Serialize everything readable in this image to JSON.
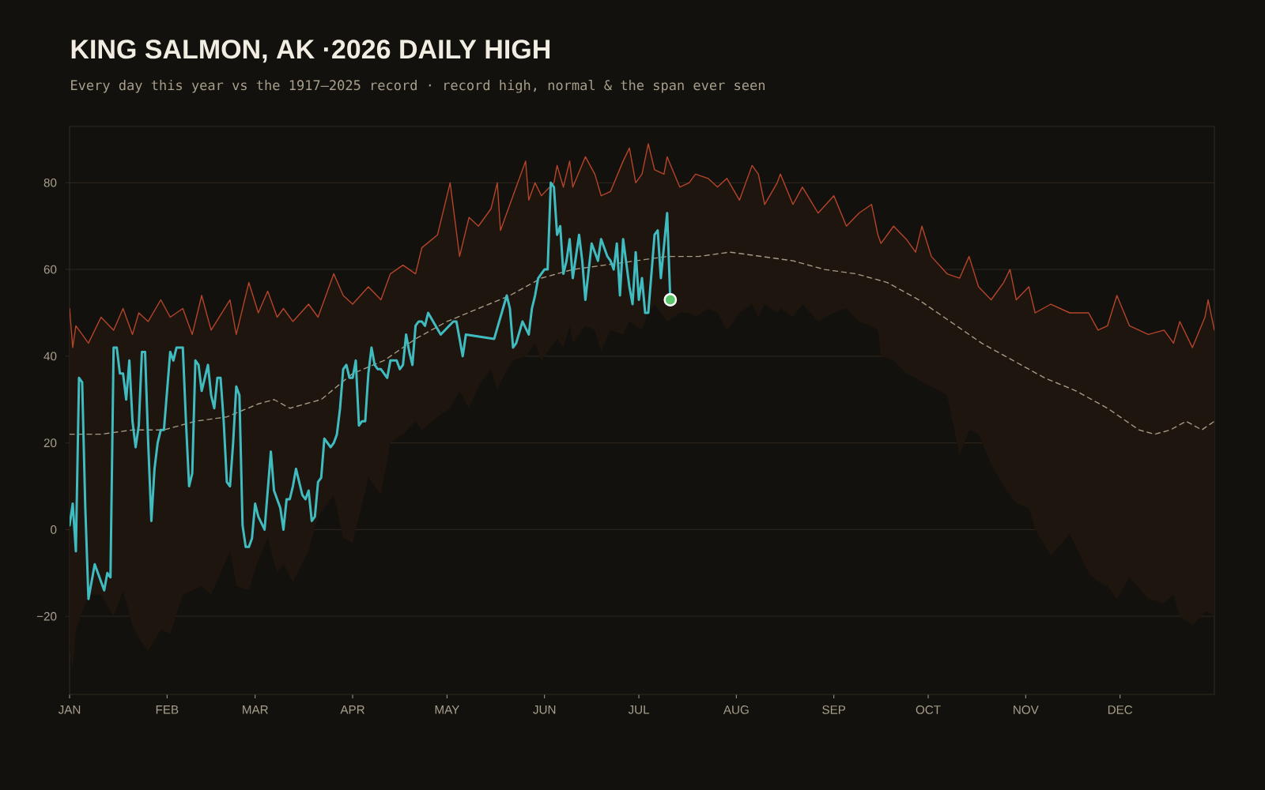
{
  "chart_data": {
    "type": "line",
    "title": "KING SALMON, AK ·2026 DAILY HIGH",
    "subtitle": "Every day this year vs the 1917–2025 record · record high, normal & the span ever seen",
    "xlim": [
      "2026-01-01",
      "2026-12-31"
    ],
    "xticks": [
      {
        "value": "2026-01-01",
        "label": "JAN"
      },
      {
        "value": "2026-02-01",
        "label": "FEB"
      },
      {
        "value": "2026-03-01",
        "label": "MAR"
      },
      {
        "value": "2026-04-01",
        "label": "APR"
      },
      {
        "value": "2026-05-01",
        "label": "MAY"
      },
      {
        "value": "2026-06-01",
        "label": "JUN"
      },
      {
        "value": "2026-07-01",
        "label": "JUL"
      },
      {
        "value": "2026-08-01",
        "label": "AUG"
      },
      {
        "value": "2026-09-01",
        "label": "SEP"
      },
      {
        "value": "2026-10-01",
        "label": "OCT"
      },
      {
        "value": "2026-11-01",
        "label": "NOV"
      },
      {
        "value": "2026-12-01",
        "label": "DEC"
      }
    ],
    "ylim": [
      -38,
      93
    ],
    "yticks": [
      {
        "value": -20,
        "label": "−20"
      },
      0,
      20,
      40,
      60,
      80
    ],
    "grid": "y",
    "series": [
      {
        "color": "#b5452a",
        "x": [
          "2026-01-01",
          "2026-01-02",
          "2026-01-03",
          "2026-01-07",
          "2026-01-11",
          "2026-01-15",
          "2026-01-18",
          "2026-01-21",
          "2026-01-23",
          "2026-01-26",
          "2026-01-30",
          "2026-02-02",
          "2026-02-06",
          "2026-02-09",
          "2026-02-12",
          "2026-02-15",
          "2026-02-21",
          "2026-02-23",
          "2026-02-27",
          "2026-03-02",
          "2026-03-05",
          "2026-03-08",
          "2026-03-10",
          "2026-03-13",
          "2026-03-18",
          "2026-03-21",
          "2026-03-26",
          "2026-03-29",
          "2026-04-01",
          "2026-04-06",
          "2026-04-10",
          "2026-04-13",
          "2026-04-17",
          "2026-04-21",
          "2026-04-23",
          "2026-04-28",
          "2026-05-02",
          "2026-05-05",
          "2026-05-08",
          "2026-05-11",
          "2026-05-15",
          "2026-05-17",
          "2026-05-18",
          "2026-05-22",
          "2026-05-26",
          "2026-05-27",
          "2026-05-29",
          "2026-05-31",
          "2026-06-04",
          "2026-06-05",
          "2026-06-07",
          "2026-06-09",
          "2026-06-10",
          "2026-06-14",
          "2026-06-17",
          "2026-06-19",
          "2026-06-22",
          "2026-06-26",
          "2026-06-28",
          "2026-06-30",
          "2026-07-02",
          "2026-07-04",
          "2026-07-06",
          "2026-07-09",
          "2026-07-10",
          "2026-07-14",
          "2026-07-17",
          "2026-07-19",
          "2026-07-23",
          "2026-07-26",
          "2026-07-29",
          "2026-08-02",
          "2026-08-06",
          "2026-08-08",
          "2026-08-10",
          "2026-08-14",
          "2026-08-15",
          "2026-08-19",
          "2026-08-22",
          "2026-08-27",
          "2026-09-01",
          "2026-09-05",
          "2026-09-09",
          "2026-09-13",
          "2026-09-15",
          "2026-09-16",
          "2026-09-20",
          "2026-09-24",
          "2026-09-27",
          "2026-09-29",
          "2026-10-02",
          "2026-10-07",
          "2026-10-11",
          "2026-10-14",
          "2026-10-17",
          "2026-10-21",
          "2026-10-25",
          "2026-10-27",
          "2026-10-29",
          "2026-11-02",
          "2026-11-04",
          "2026-11-09",
          "2026-11-15",
          "2026-11-21",
          "2026-11-24",
          "2026-11-27",
          "2026-11-30",
          "2026-12-04",
          "2026-12-10",
          "2026-12-15",
          "2026-12-18",
          "2026-12-20",
          "2026-12-24",
          "2026-12-28",
          "2026-12-29",
          "2026-12-31"
        ],
        "values": [
          51,
          42,
          47,
          43,
          49,
          46,
          51,
          45,
          50,
          48,
          53,
          49,
          51,
          45,
          54,
          46,
          53,
          45,
          57,
          50,
          55,
          49,
          51,
          48,
          52,
          49,
          59,
          54,
          52,
          56,
          53,
          59,
          61,
          59,
          65,
          68,
          80,
          63,
          72,
          70,
          74,
          80,
          69,
          77,
          85,
          76,
          80,
          77,
          80,
          84,
          79,
          85,
          79,
          86,
          82,
          77,
          78,
          85,
          88,
          80,
          82,
          89,
          83,
          82,
          86,
          79,
          80,
          82,
          81,
          79,
          81,
          76,
          84,
          82,
          75,
          80,
          82,
          75,
          79,
          73,
          77,
          70,
          73,
          75,
          68,
          66,
          70,
          67,
          64,
          70,
          63,
          59,
          58,
          63,
          56,
          53,
          57,
          60,
          53,
          56,
          50,
          52,
          50,
          50,
          46,
          47,
          54,
          47,
          45,
          46,
          43,
          48,
          42,
          49,
          53,
          46
        ],
        "upper": [
          51,
          42,
          47,
          43,
          49,
          46,
          51,
          45,
          50,
          48,
          53,
          49,
          51,
          45,
          54,
          46,
          53,
          45,
          57,
          50,
          55,
          49,
          51,
          48,
          52,
          49,
          59,
          54,
          52,
          56,
          53,
          59,
          61,
          59,
          65,
          68,
          80,
          63,
          72,
          70,
          74,
          80,
          69,
          77,
          85,
          76,
          80,
          77,
          80,
          84,
          79,
          85,
          79,
          86,
          82,
          77,
          78,
          85,
          88,
          80,
          82,
          89,
          83,
          82,
          86,
          79,
          80,
          82,
          81,
          79,
          81,
          76,
          84,
          82,
          75,
          80,
          82,
          75,
          79,
          73,
          77,
          70,
          73,
          75,
          68,
          66,
          70,
          67,
          64,
          70,
          63,
          59,
          58,
          63,
          56,
          53,
          57,
          60,
          53,
          56,
          50,
          52,
          50,
          50,
          46,
          47,
          54,
          47,
          45,
          46,
          43,
          48,
          42,
          49,
          53,
          46
        ],
        "lower": [
          -28,
          -32,
          -23,
          -15,
          -15,
          -20,
          -14,
          -22,
          -25,
          -28,
          -23,
          -24,
          -15,
          -14,
          -13,
          -15,
          -5,
          -13,
          -14,
          -7,
          -2,
          -10,
          -8,
          -12,
          -5,
          3,
          8,
          -2,
          -3,
          12,
          8,
          20,
          22,
          25,
          23,
          26,
          28,
          32,
          28,
          33,
          37,
          32,
          34,
          39,
          40,
          41,
          43,
          39,
          43,
          44,
          42,
          47,
          43,
          47,
          46,
          41,
          46,
          45,
          48,
          47,
          46,
          50,
          52,
          49,
          48,
          50,
          50,
          49,
          51,
          50,
          46,
          50,
          52,
          49,
          52,
          50,
          51,
          49,
          52,
          48,
          50,
          51,
          48,
          47,
          46,
          40,
          39,
          36,
          35,
          34,
          33,
          31,
          17,
          23,
          22,
          15,
          10,
          8,
          6,
          5,
          0,
          -6,
          -1,
          -10,
          -12,
          -13,
          -16,
          -11,
          -16,
          -17,
          -15,
          -20,
          -22,
          -19,
          -19,
          -20
        ]
      },
      {
        "color": "#a39a83",
        "line_style": "dashed",
        "x": [
          "2026-01-01",
          "2026-01-11",
          "2026-01-21",
          "2026-01-31",
          "2026-02-10",
          "2026-02-20",
          "2026-03-02",
          "2026-03-07",
          "2026-03-12",
          "2026-03-22",
          "2026-04-01",
          "2026-04-11",
          "2026-04-21",
          "2026-05-01",
          "2026-05-11",
          "2026-05-21",
          "2026-05-31",
          "2026-06-10",
          "2026-06-20",
          "2026-06-30",
          "2026-07-10",
          "2026-07-20",
          "2026-07-30",
          "2026-08-09",
          "2026-08-19",
          "2026-08-29",
          "2026-09-08",
          "2026-09-18",
          "2026-09-28",
          "2026-10-08",
          "2026-10-18",
          "2026-10-28",
          "2026-11-07",
          "2026-11-17",
          "2026-11-27",
          "2026-12-07",
          "2026-12-12",
          "2026-12-17",
          "2026-12-22",
          "2026-12-27",
          "2026-12-31"
        ],
        "values": [
          22,
          22,
          23,
          23,
          25,
          26,
          29,
          30,
          28,
          30,
          36,
          39,
          44,
          48,
          51,
          54,
          58,
          60,
          61,
          62,
          63,
          63,
          64,
          63,
          62,
          60,
          59,
          57,
          53,
          48,
          43,
          39,
          35,
          32,
          28,
          23,
          22,
          23,
          25,
          23,
          25
        ]
      },
      {
        "color": "#40bcc0",
        "x": [
          "2026-01-01",
          "2026-01-02",
          "2026-01-03",
          "2026-01-04",
          "2026-01-05",
          "2026-01-06",
          "2026-01-07",
          "2026-01-09",
          "2026-01-10",
          "2026-01-12",
          "2026-01-13",
          "2026-01-14",
          "2026-01-15",
          "2026-01-16",
          "2026-01-17",
          "2026-01-18",
          "2026-01-19",
          "2026-01-20",
          "2026-01-21",
          "2026-01-22",
          "2026-01-23",
          "2026-01-24",
          "2026-01-25",
          "2026-01-26",
          "2026-01-27",
          "2026-01-28",
          "2026-01-29",
          "2026-01-30",
          "2026-01-31",
          "2026-02-02",
          "2026-02-03",
          "2026-02-04",
          "2026-02-06",
          "2026-02-07",
          "2026-02-08",
          "2026-02-09",
          "2026-02-10",
          "2026-02-11",
          "2026-02-12",
          "2026-02-13",
          "2026-02-14",
          "2026-02-15",
          "2026-02-16",
          "2026-02-17",
          "2026-02-18",
          "2026-02-19",
          "2026-02-20",
          "2026-02-21",
          "2026-02-22",
          "2026-02-23",
          "2026-02-24",
          "2026-02-25",
          "2026-02-26",
          "2026-02-27",
          "2026-02-28",
          "2026-03-01",
          "2026-03-02",
          "2026-03-04",
          "2026-03-05",
          "2026-03-06",
          "2026-03-07",
          "2026-03-09",
          "2026-03-10",
          "2026-03-11",
          "2026-03-12",
          "2026-03-13",
          "2026-03-14",
          "2026-03-16",
          "2026-03-17",
          "2026-03-18",
          "2026-03-19",
          "2026-03-20",
          "2026-03-21",
          "2026-03-22",
          "2026-03-23",
          "2026-03-25",
          "2026-03-26",
          "2026-03-27",
          "2026-03-28",
          "2026-03-29",
          "2026-03-30",
          "2026-03-31",
          "2026-04-01",
          "2026-04-02",
          "2026-04-03",
          "2026-04-04",
          "2026-04-05",
          "2026-04-06",
          "2026-04-07",
          "2026-04-08",
          "2026-04-09",
          "2026-04-10",
          "2026-04-11",
          "2026-04-12",
          "2026-04-13",
          "2026-04-14",
          "2026-04-15",
          "2026-04-16",
          "2026-04-17",
          "2026-04-18",
          "2026-04-19",
          "2026-04-20",
          "2026-04-21",
          "2026-04-22",
          "2026-04-23",
          "2026-04-24",
          "2026-04-25",
          "2026-04-29",
          "2026-05-03",
          "2026-05-04",
          "2026-05-06",
          "2026-05-07",
          "2026-05-16",
          "2026-05-20",
          "2026-05-21",
          "2026-05-22",
          "2026-05-23",
          "2026-05-25",
          "2026-05-27",
          "2026-05-28",
          "2026-05-29",
          "2026-05-30",
          "2026-06-01",
          "2026-06-02",
          "2026-06-03",
          "2026-06-04",
          "2026-06-05",
          "2026-06-06",
          "2026-06-07",
          "2026-06-08",
          "2026-06-09",
          "2026-06-10",
          "2026-06-12",
          "2026-06-13",
          "2026-06-14",
          "2026-06-16",
          "2026-06-18",
          "2026-06-19",
          "2026-06-21",
          "2026-06-22",
          "2026-06-23",
          "2026-06-24",
          "2026-06-25",
          "2026-06-26",
          "2026-06-28",
          "2026-06-29",
          "2026-06-30",
          "2026-07-01",
          "2026-07-02",
          "2026-07-03",
          "2026-07-04",
          "2026-07-06",
          "2026-07-07",
          "2026-07-08",
          "2026-07-10",
          "2026-07-11"
        ],
        "values": [
          1,
          6,
          -5,
          35,
          34,
          5,
          -16,
          -8,
          -10,
          -14,
          -10,
          -11,
          42,
          42,
          36,
          36,
          30,
          39,
          25,
          19,
          24,
          41,
          41,
          20,
          2,
          14,
          20,
          23,
          23,
          41,
          39,
          42,
          42,
          25,
          10,
          13,
          39,
          38,
          32,
          35,
          38,
          31,
          28,
          35,
          35,
          25,
          11,
          10,
          20,
          33,
          31,
          1,
          -4,
          -4,
          -2,
          6,
          3,
          0,
          9,
          18,
          9,
          5,
          0,
          7,
          7,
          10,
          14,
          8,
          7,
          9,
          2,
          3,
          11,
          12,
          21,
          19,
          20,
          22,
          28,
          37,
          38,
          35,
          35,
          39,
          24,
          25,
          25,
          36,
          42,
          38,
          37,
          37,
          36,
          35,
          39,
          39,
          39,
          37,
          38,
          45,
          41,
          38,
          47,
          48,
          48,
          47,
          50,
          45,
          48,
          48,
          40,
          45,
          44,
          54,
          51,
          42,
          43,
          48,
          45,
          51,
          54,
          58,
          60,
          60,
          80,
          79,
          68,
          70,
          59,
          62,
          67,
          58,
          68,
          62,
          53,
          66,
          62,
          67,
          63,
          62,
          60,
          66,
          54,
          67,
          56,
          52,
          64,
          53,
          58,
          50,
          50,
          68,
          69,
          58,
          73,
          53
        ]
      },
      {
        "type": "scatter",
        "color": "#5cc66a",
        "marker": "circle",
        "x": [
          "2026-07-11"
        ],
        "values": [
          53
        ]
      }
    ]
  }
}
